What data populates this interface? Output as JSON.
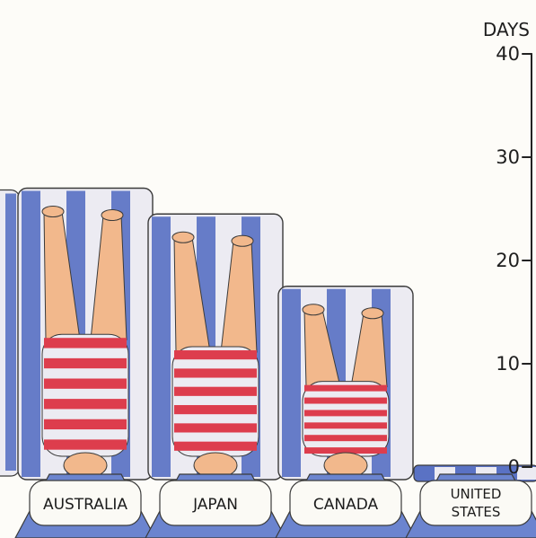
{
  "chart_data": {
    "type": "bar",
    "ylabel": "DAYS",
    "ylim": [
      0,
      40
    ],
    "y_ticks": [
      "0",
      "10",
      "20",
      "30",
      "40"
    ],
    "categories": [
      "AUSTRALIA",
      "JAPAN",
      "CANADA",
      "UNITED STATES"
    ],
    "values": [
      27,
      24.5,
      17.5,
      0
    ],
    "grid": false,
    "colors": {
      "stripe_blue": "#5a72c4",
      "stripe_white": "#ecebf2",
      "skin": "#f2b88c",
      "swimsuit_red": "#dd3d4d",
      "outline": "#3a3a3a",
      "label_blue": "#6b84cf"
    }
  }
}
